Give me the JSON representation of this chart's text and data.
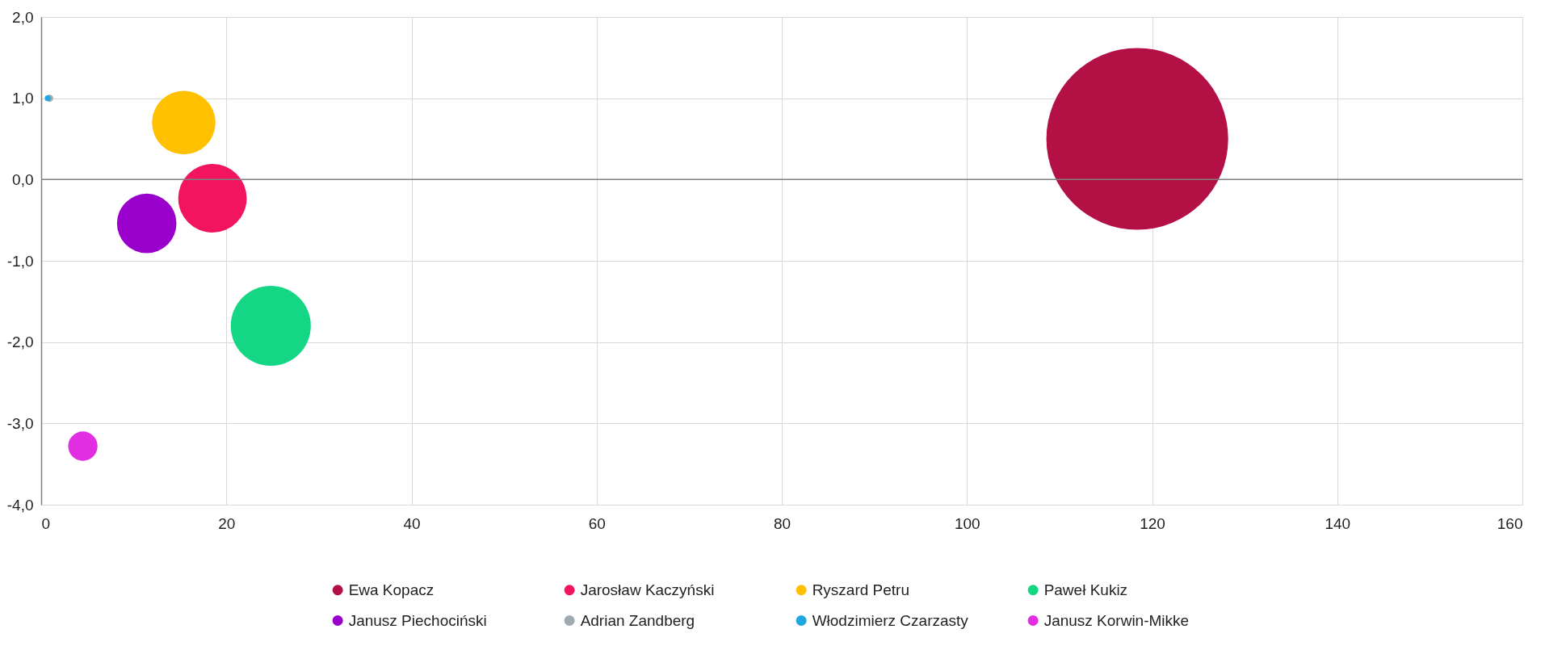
{
  "chart_data": {
    "type": "bubble",
    "xlim": [
      0,
      160
    ],
    "xticks": [
      0,
      20,
      40,
      60,
      80,
      100,
      120,
      140,
      160
    ],
    "ylim": [
      -4,
      2
    ],
    "yticks": [
      {
        "value": -4,
        "label": "-4,0"
      },
      {
        "value": -3,
        "label": "-3,0"
      },
      {
        "value": -2,
        "label": "-2,0"
      },
      {
        "value": -1,
        "label": "-1,0"
      },
      {
        "value": 0,
        "label": "0,0"
      },
      {
        "value": 1,
        "label": "1,0"
      },
      {
        "value": 2,
        "label": "2,0"
      }
    ],
    "grid": true,
    "legend": "bottom",
    "ref_lines": [
      {
        "axis": "y",
        "value": 0,
        "color": "#808080"
      }
    ],
    "series": [
      {
        "name": "Ewa Kopacz",
        "color": "#b31045",
        "x": [
          118.4
        ],
        "values": [
          0.5
        ],
        "sizes": [
          1
        ]
      },
      {
        "name": "Jarosław Kaczyński",
        "color": "#f2145f",
        "x": [
          18.5
        ],
        "values": [
          -0.23
        ],
        "sizes": [
          0.142
        ]
      },
      {
        "name": "Ryszard Petru",
        "color": "#ffc000",
        "x": [
          15.4
        ],
        "values": [
          0.7
        ],
        "sizes": [
          0.122
        ]
      },
      {
        "name": "Paweł Kukiz",
        "color": "#14d685",
        "x": [
          24.8
        ],
        "values": [
          -1.8
        ],
        "sizes": [
          0.194
        ]
      },
      {
        "name": "Janusz Piechociński",
        "color": "#9900cc",
        "x": [
          11.4
        ],
        "values": [
          -0.54
        ],
        "sizes": [
          0.107
        ]
      },
      {
        "name": "Adrian Zandberg",
        "color": "#9eaab2",
        "x": [
          0.9
        ],
        "values": [
          1.0
        ],
        "sizes": [
          0.0016
        ]
      },
      {
        "name": "Włodzimierz Czarzasty",
        "color": "#1fa8e0",
        "x": [
          0.7
        ],
        "values": [
          1.0
        ],
        "sizes": [
          0.001
        ]
      },
      {
        "name": "Janusz Korwin-Mikke",
        "color": "#e02ee0",
        "x": [
          4.5
        ],
        "values": [
          -3.28
        ],
        "sizes": [
          0.026
        ]
      }
    ]
  }
}
